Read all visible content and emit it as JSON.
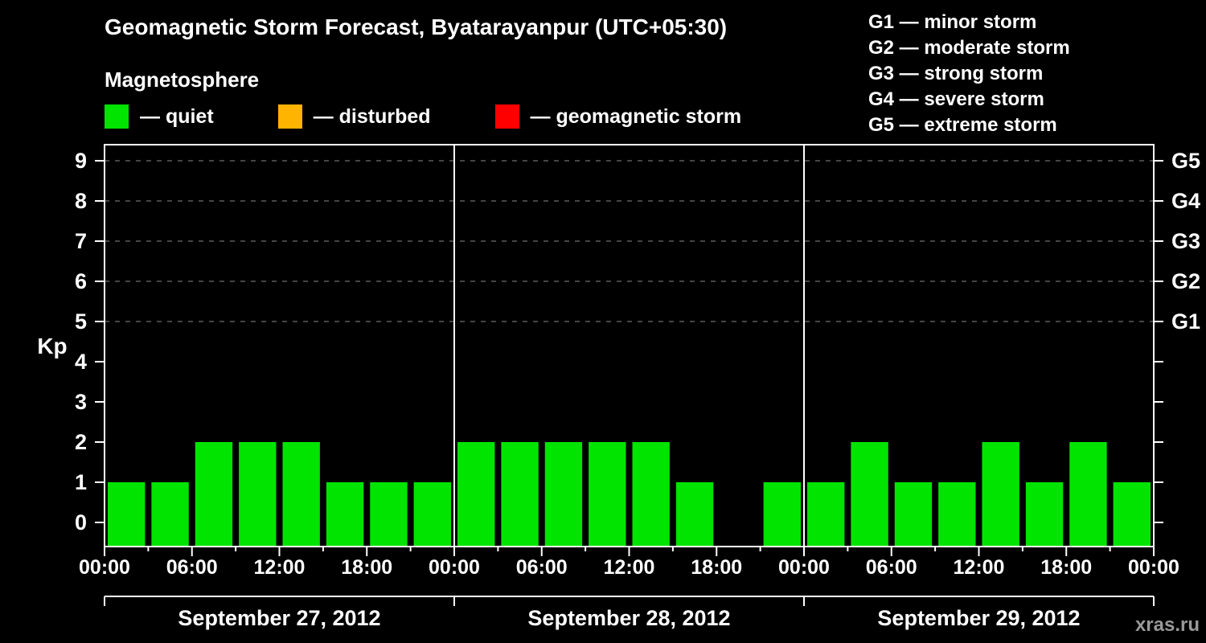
{
  "title": "Geomagnetic Storm Forecast, Byatarayanpur (UTC+05:30)",
  "subtitle": "Magnetosphere",
  "legend": {
    "items": [
      {
        "label": "— quiet",
        "color": "#00e400"
      },
      {
        "label": "— disturbed",
        "color": "#ffb400"
      },
      {
        "label": "— geomagnetic storm",
        "color": "#ff0000"
      }
    ]
  },
  "storm_scale_legend": [
    "G1 — minor storm",
    "G2 — moderate storm",
    "G3 — strong storm",
    "G4 — severe storm",
    "G5 — extreme storm"
  ],
  "watermark": "xras.ru",
  "chart_data": {
    "type": "bar",
    "title": "Geomagnetic Storm Forecast, Byatarayanpur (UTC+05:30)",
    "ylabel": "Kp",
    "ylim": [
      0,
      9
    ],
    "y_ticks": [
      0,
      1,
      2,
      3,
      4,
      5,
      6,
      7,
      8,
      9
    ],
    "gridline_levels": [
      5,
      6,
      7,
      8,
      9
    ],
    "grid_style": "dashed",
    "right_axis_labels": [
      {
        "label": "G1",
        "kp": 5
      },
      {
        "label": "G2",
        "kp": 6
      },
      {
        "label": "G3",
        "kp": 7
      },
      {
        "label": "G4",
        "kp": 8
      },
      {
        "label": "G5",
        "kp": 9
      }
    ],
    "interval_hours": 3,
    "bar_color": "#00e400",
    "days": [
      {
        "date": "September 27, 2012",
        "values": [
          1,
          1,
          2,
          2,
          2,
          1,
          1,
          1
        ]
      },
      {
        "date": "September 28, 2012",
        "values": [
          2,
          2,
          2,
          2,
          2,
          1,
          0,
          1
        ]
      },
      {
        "date": "September 29, 2012",
        "values": [
          1,
          2,
          1,
          1,
          2,
          1,
          2,
          1
        ]
      }
    ],
    "x_tick_labels": [
      "00:00",
      "06:00",
      "12:00",
      "18:00",
      "00:00",
      "06:00",
      "12:00",
      "18:00",
      "00:00",
      "06:00",
      "12:00",
      "18:00",
      "00:00"
    ]
  }
}
